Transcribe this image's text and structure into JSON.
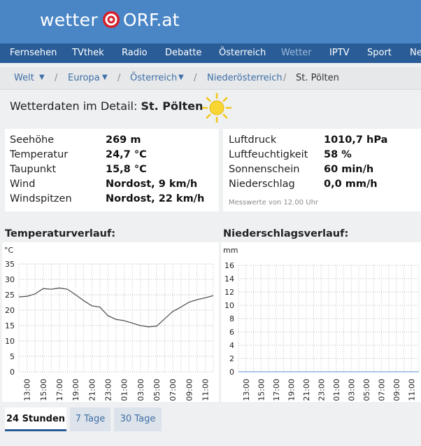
{
  "header": {
    "logo_wetter": "wetter",
    "logo_orf": "ORF.at"
  },
  "nav": {
    "items": [
      "Fernsehen",
      "TVthek",
      "Radio",
      "Debatte",
      "Österreich",
      "Wetter",
      "IPTV",
      "Sport",
      "Ne"
    ],
    "active_index": 5
  },
  "breadcrumb": {
    "items": [
      "Welt",
      "Europa",
      "Österreich",
      "Niederösterreich",
      "St. Pölten"
    ]
  },
  "detail": {
    "title_prefix": "Wetterdaten im Detail:",
    "location": "St. Pölten",
    "weather_icon": "sun-icon"
  },
  "measurements_left": [
    {
      "label": "Seehöhe",
      "value": "269 m"
    },
    {
      "label": "Temperatur",
      "value": "24,7 °C"
    },
    {
      "label": "Taupunkt",
      "value": "15,8 °C"
    },
    {
      "label": "Wind",
      "value": "Nordost, 9 km/h"
    },
    {
      "label": "Windspitzen",
      "value": "Nordost, 22 km/h"
    }
  ],
  "measurements_right": [
    {
      "label": "Luftdruck",
      "value": "1010,7 hPa"
    },
    {
      "label": "Luftfeuchtigkeit",
      "value": "58 %"
    },
    {
      "label": "Sonnenschein",
      "value": "60 min/h"
    },
    {
      "label": "Niederschlag",
      "value": "0,0 mm/h"
    }
  ],
  "measured_note": "Messwerte von 12.00 Uhr",
  "charts": {
    "temperature_title": "Temperaturverlauf:",
    "temperature_unit": "°C",
    "precipitation_title": "Niederschlagsverlauf:",
    "precipitation_unit": "mm"
  },
  "chart_data": [
    {
      "type": "line",
      "title": "Temperaturverlauf:",
      "ylabel": "°C",
      "ylim": [
        0,
        35
      ],
      "yticks": [
        0,
        5,
        10,
        15,
        20,
        25,
        30,
        35
      ],
      "x_tick_labels": [
        "13:00",
        "15:00",
        "17:00",
        "19:00",
        "21:00",
        "23:00",
        "01:00",
        "03:00",
        "05:00",
        "07:00",
        "09:00",
        "11:00"
      ],
      "x": [
        "12:00",
        "13:00",
        "14:00",
        "15:00",
        "16:00",
        "17:00",
        "18:00",
        "19:00",
        "20:00",
        "21:00",
        "22:00",
        "23:00",
        "00:00",
        "01:00",
        "02:00",
        "03:00",
        "04:00",
        "05:00",
        "06:00",
        "07:00",
        "08:00",
        "09:00",
        "10:00",
        "11:00",
        "12:00"
      ],
      "values": [
        24.3,
        24.5,
        25.3,
        27.0,
        26.8,
        27.2,
        26.8,
        25.0,
        23.1,
        21.4,
        21.0,
        18.2,
        17.0,
        16.6,
        15.8,
        15.0,
        14.6,
        14.8,
        17.2,
        19.6,
        21.0,
        22.6,
        23.4,
        24.0,
        24.7
      ],
      "grid": true,
      "color": "#555555"
    },
    {
      "type": "line",
      "title": "Niederschlagsverlauf:",
      "ylabel": "mm",
      "ylim": [
        0,
        16
      ],
      "yticks": [
        0,
        2,
        4,
        6,
        8,
        10,
        12,
        14,
        16
      ],
      "x_tick_labels": [
        "13:00",
        "15:00",
        "17:00",
        "19:00",
        "21:00",
        "23:00",
        "01:00",
        "03:00",
        "05:00",
        "07:00",
        "09:00",
        "11:00"
      ],
      "x": [
        "12:00",
        "13:00",
        "14:00",
        "15:00",
        "16:00",
        "17:00",
        "18:00",
        "19:00",
        "20:00",
        "21:00",
        "22:00",
        "23:00",
        "00:00",
        "01:00",
        "02:00",
        "03:00",
        "04:00",
        "05:00",
        "06:00",
        "07:00",
        "08:00",
        "09:00",
        "10:00",
        "11:00",
        "12:00"
      ],
      "values": [
        0,
        0,
        0,
        0,
        0,
        0,
        0,
        0,
        0,
        0,
        0,
        0,
        0,
        0,
        0,
        0,
        0,
        0,
        0,
        0,
        0,
        0,
        0,
        0,
        0
      ],
      "grid": true,
      "color": "#7aa8d8"
    }
  ],
  "tabs": {
    "items": [
      "24 Stunden",
      "7 Tage",
      "30 Tage"
    ],
    "active_index": 0
  }
}
